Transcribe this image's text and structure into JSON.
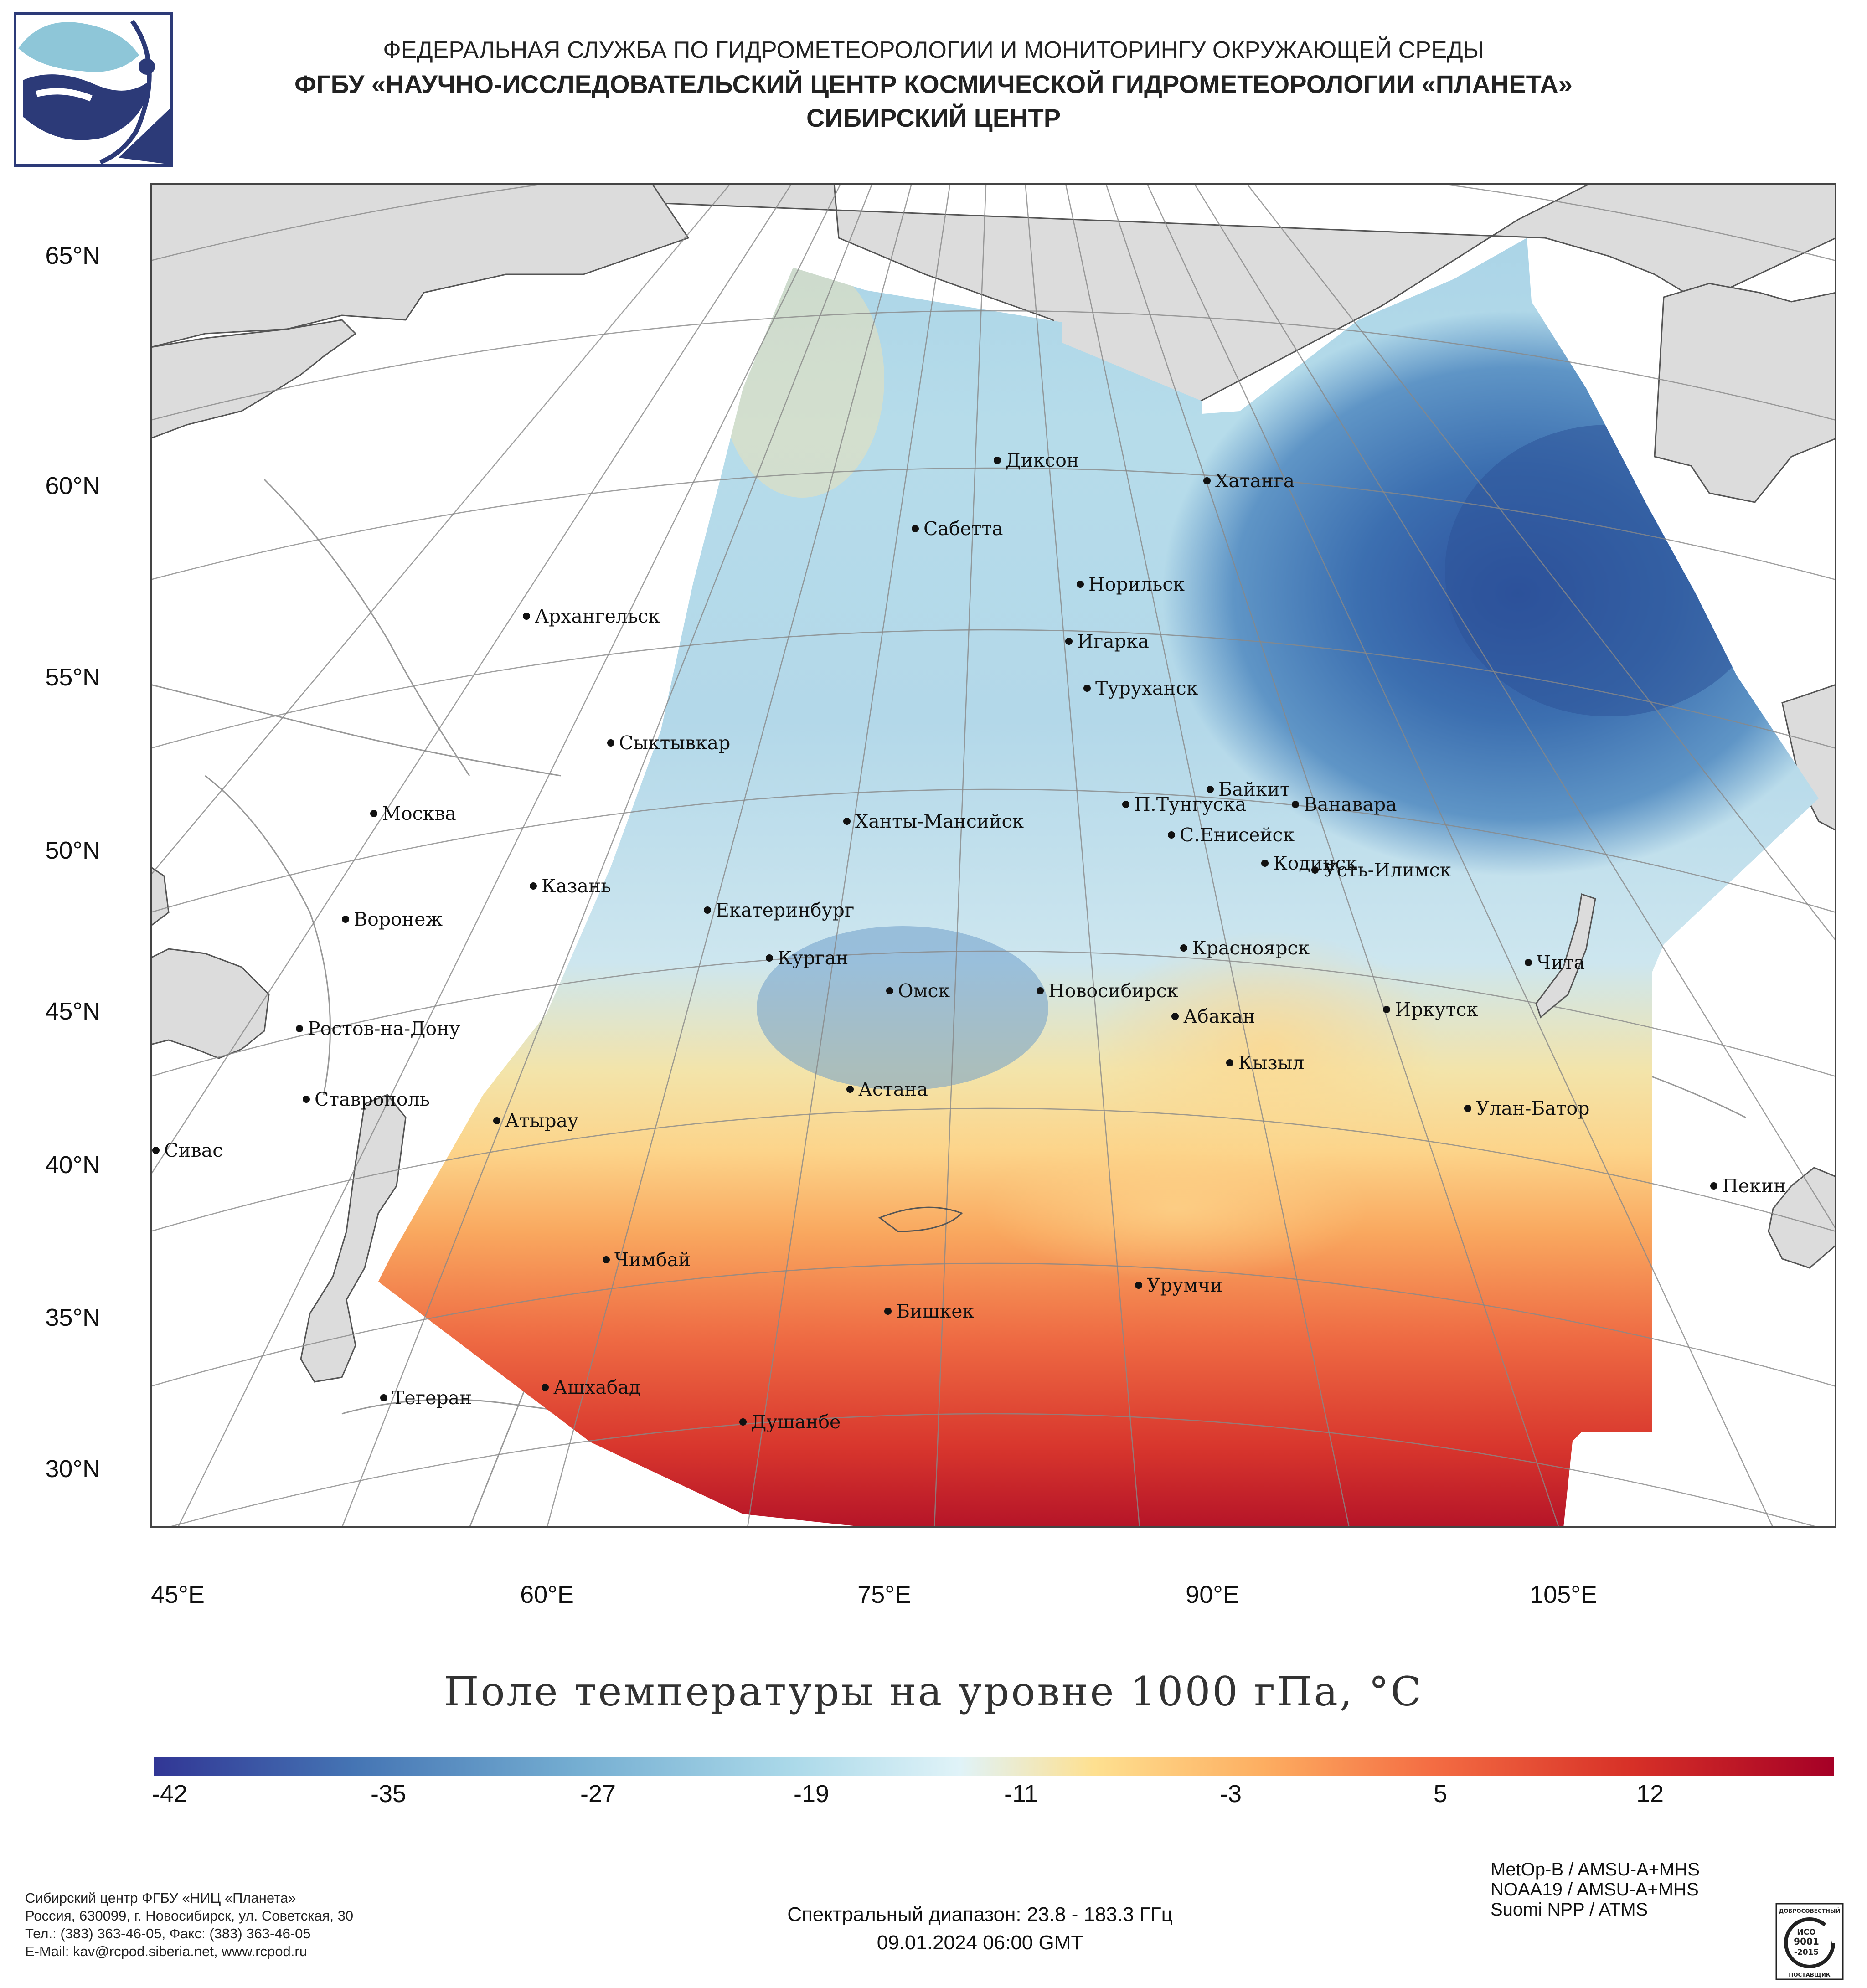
{
  "header": {
    "line1": "ФЕДЕРАЛЬНАЯ СЛУЖБА ПО ГИДРОМЕТЕОРОЛОГИИ И МОНИТОРИНГУ ОКРУЖАЮЩЕЙ СРЕДЫ",
    "line2": "ФГБУ «НАУЧНО-ИССЛЕДОВАТЕЛЬСКИЙ ЦЕНТР КОСМИЧЕСКОЙ ГИДРОМЕТЕОРОЛОГИИ «ПЛАНЕТА»",
    "line3": "СИБИРСКИЙ ЦЕНТР"
  },
  "map": {
    "title": "Поле температуры на уровне 1000 гПа, °C",
    "latitude_labels": [
      "65°N",
      "60°N",
      "55°N",
      "50°N",
      "45°N",
      "40°N",
      "35°N",
      "30°N"
    ],
    "longitude_labels": [
      "45°E",
      "60°E",
      "75°E",
      "90°E",
      "105°E"
    ],
    "cities": [
      {
        "name": "Диксон"
      },
      {
        "name": "Хатанга"
      },
      {
        "name": "Сабетта"
      },
      {
        "name": "Норильск"
      },
      {
        "name": "Игарка"
      },
      {
        "name": "Туруханск"
      },
      {
        "name": "Архангельск"
      },
      {
        "name": "Сыктывкар"
      },
      {
        "name": "Москва"
      },
      {
        "name": "Байкит"
      },
      {
        "name": "П.Тунгуска"
      },
      {
        "name": "Ванавара"
      },
      {
        "name": "Ханты-Мансийск"
      },
      {
        "name": "С.Енисейск"
      },
      {
        "name": "Кодинск"
      },
      {
        "name": "Усть-Илимск"
      },
      {
        "name": "Казань"
      },
      {
        "name": "Екатеринбург"
      },
      {
        "name": "Воронеж"
      },
      {
        "name": "Курган"
      },
      {
        "name": "Красноярск"
      },
      {
        "name": "Чита"
      },
      {
        "name": "Омск"
      },
      {
        "name": "Новосибирск"
      },
      {
        "name": "Иркутск"
      },
      {
        "name": "Абакан"
      },
      {
        "name": "Ростов-на-Дону"
      },
      {
        "name": "Кызыл"
      },
      {
        "name": "Астана"
      },
      {
        "name": "Ставрополь"
      },
      {
        "name": "Улан-Батор"
      },
      {
        "name": "Атырау"
      },
      {
        "name": "Сивас"
      },
      {
        "name": "Пекин"
      },
      {
        "name": "Чимбай"
      },
      {
        "name": "Урумчи"
      },
      {
        "name": "Бишкек"
      },
      {
        "name": "Ашхабад"
      },
      {
        "name": "Тегеран"
      },
      {
        "name": "Душанбе"
      }
    ]
  },
  "legend": {
    "ticks": [
      "-42",
      "-35",
      "-27",
      "-19",
      "-11",
      "-3",
      "5",
      "12"
    ],
    "colors": [
      "#313695",
      "#4575b4",
      "#74add1",
      "#abd9e9",
      "#e0f3f8",
      "#fee090",
      "#fdae61",
      "#f46d43",
      "#d73027",
      "#a50026"
    ]
  },
  "footer": {
    "org_lines": [
      "Сибирский центр ФГБУ «НИЦ «Планета»",
      "Россия, 630099, г. Новосибирск, ул. Советская, 30",
      "Тел.: (383) 363-46-05, Факс: (383) 363-46-05",
      "E-Mail: kav@rcpod.siberia.net, www.rcpod.ru"
    ],
    "spectral": "Спектральный диапазон: 23.8 - 183.3 ГГц",
    "datetime": "09.01.2024 06:00 GMT",
    "satellites": [
      "MetOp-B / AMSU-A+MHS",
      "NOAA19 / AMSU-A+MHS",
      "Suomi NPP / ATMS"
    ],
    "iso_top": "ДОБРОСОВЕСТНЫЙ",
    "iso_mid1": "ИСО",
    "iso_mid2": "9001",
    "iso_mid3": "-2015",
    "iso_bottom": "ПОСТАВЩИК"
  }
}
